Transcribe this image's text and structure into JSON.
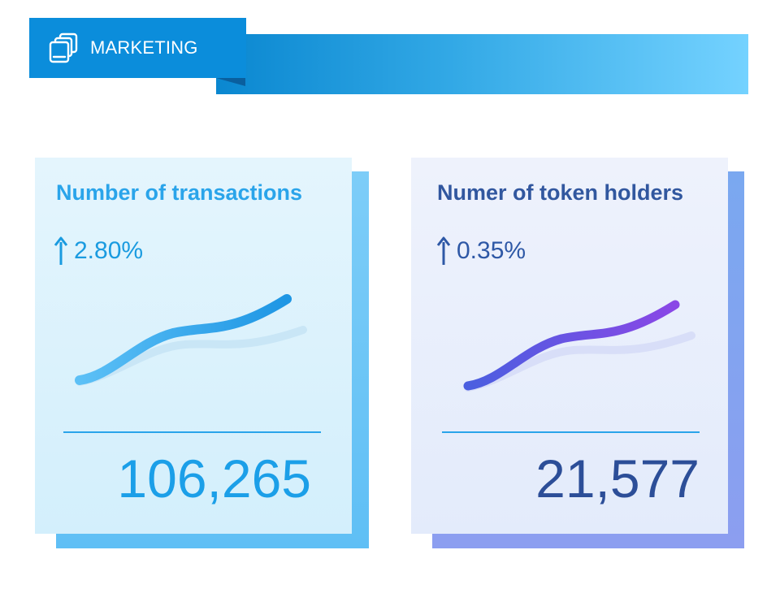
{
  "header": {
    "title": "MARKETING",
    "icon": "stacked-cards-icon",
    "colors": {
      "tab": "#0b8ddb",
      "band_start": "#0a87d0",
      "band_end": "#74d2ff"
    }
  },
  "cards": [
    {
      "title": "Number of  transactions",
      "change": "2.80%",
      "change_icon": "arrow-up-icon",
      "value": "106,265",
      "accent": "#2aa4ea"
    },
    {
      "title": "Numer of token holders",
      "change": "0.35%",
      "change_icon": "arrow-up-icon",
      "value": "21,577",
      "accent": "#31579f"
    }
  ]
}
